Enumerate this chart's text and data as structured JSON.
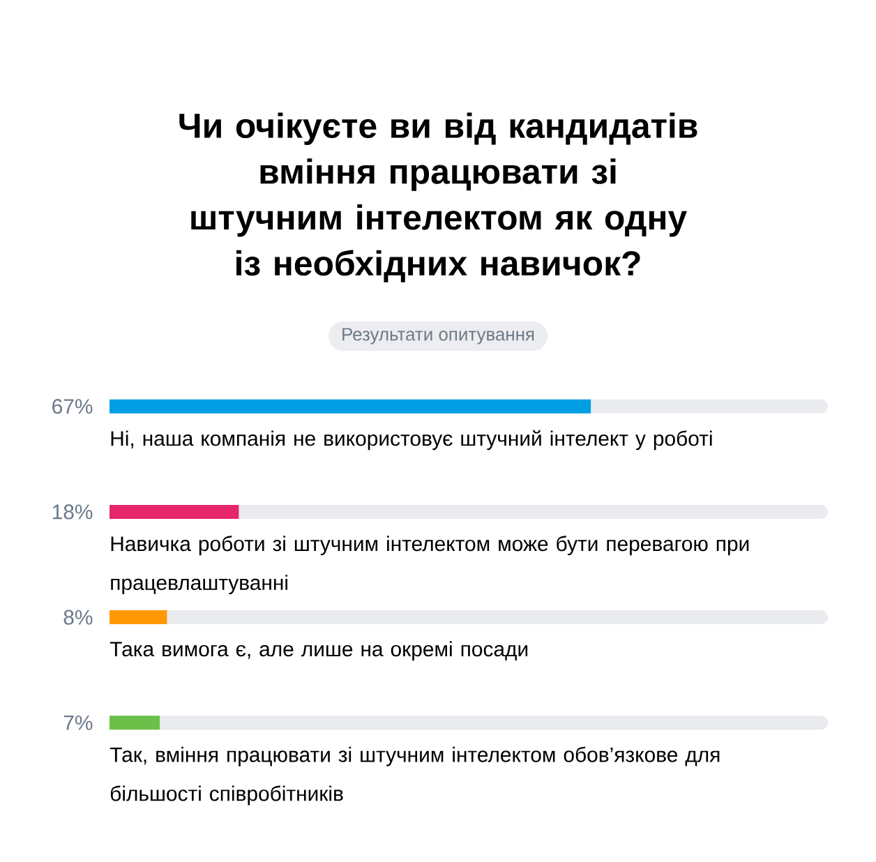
{
  "chart_data": {
    "type": "bar",
    "orientation": "horizontal",
    "title": "Чи очікуєте ви від кандидатів вміння працювати зі штучним інтелектом як одну із необхідних навичок?",
    "subtitle": "Результати опитування",
    "categories": [
      "Ні, наша компанія не використовує штучний інтелект у роботі",
      "Навичка роботи зі штучним інтелектом може бути перевагою при працевлаштуванні",
      "Така вимога є, але лише на окремі посади",
      "Так, вміння працювати зі штучним інтелектом обов’язкове для більшості співробітників"
    ],
    "values": [
      67,
      18,
      8,
      7
    ],
    "colors": [
      "#009fe3",
      "#e5266b",
      "#ff9800",
      "#6cc04a"
    ],
    "value_labels": [
      "67%",
      "18%",
      "8%",
      "7%"
    ],
    "xlim": [
      0,
      100
    ]
  }
}
